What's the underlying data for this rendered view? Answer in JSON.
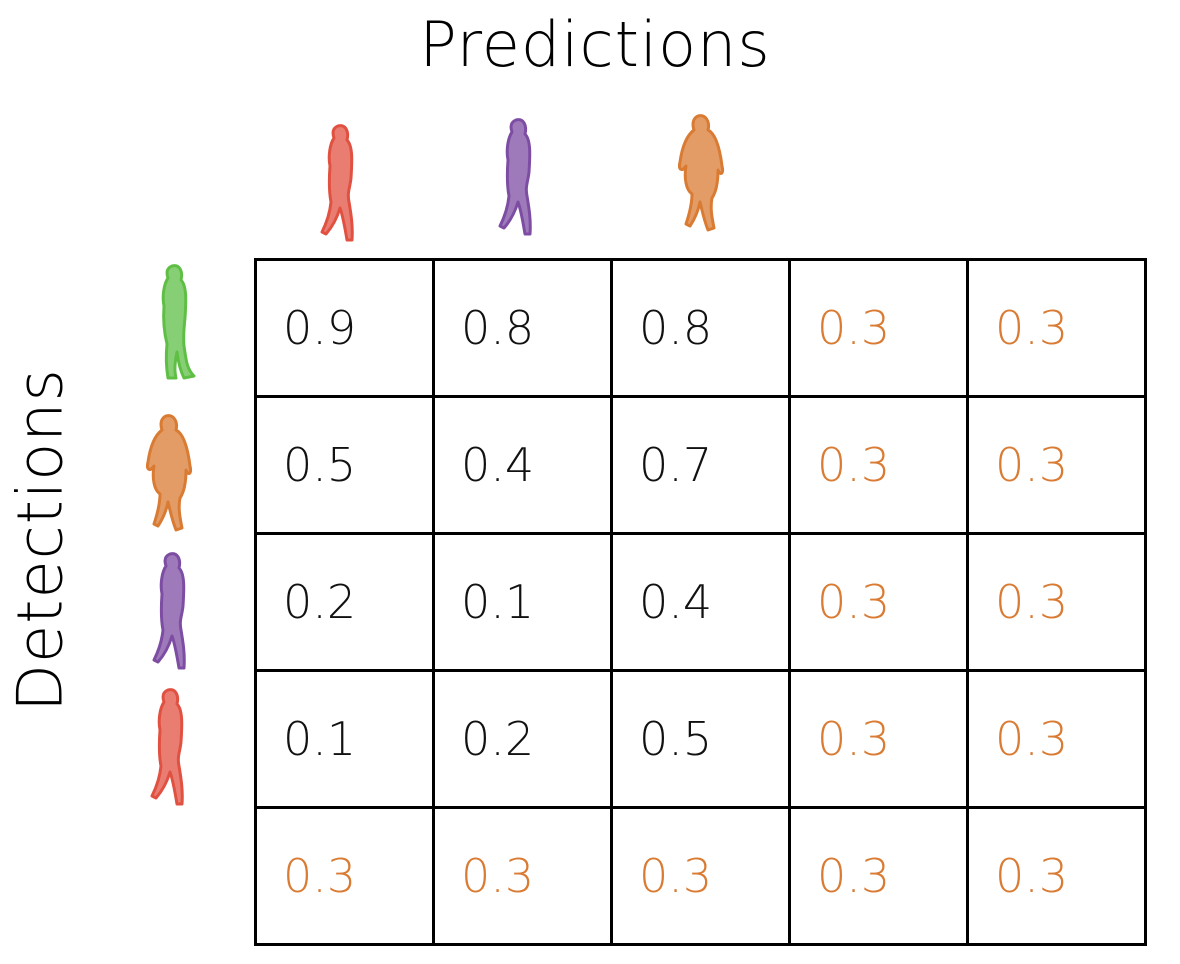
{
  "titles": {
    "top": "Predictions",
    "left": "Detections"
  },
  "colors": {
    "black_value": "#111111",
    "orange_value": "#d97b33",
    "figure_red": "#e15141",
    "figure_purple": "#7d4da3",
    "figure_orange": "#d97b33",
    "figure_green": "#5fbf45"
  },
  "predictions": [
    {
      "icon": "red-person-icon"
    },
    {
      "icon": "purple-person-icon"
    },
    {
      "icon": "orange-person-icon"
    }
  ],
  "detections": [
    {
      "icon": "green-person-icon"
    },
    {
      "icon": "orange-person-icon"
    },
    {
      "icon": "purple-person-icon"
    },
    {
      "icon": "red-person-icon"
    }
  ],
  "matrix": [
    [
      "0.9",
      "0.8",
      "0.8",
      "0.3",
      "0.3"
    ],
    [
      "0.5",
      "0.4",
      "0.7",
      "0.3",
      "0.3"
    ],
    [
      "0.2",
      "0.1",
      "0.4",
      "0.3",
      "0.3"
    ],
    [
      "0.1",
      "0.2",
      "0.5",
      "0.3",
      "0.3"
    ],
    [
      "0.3",
      "0.3",
      "0.3",
      "0.3",
      "0.3"
    ]
  ],
  "cell_styles": [
    [
      "black",
      "black",
      "black",
      "orange",
      "orange"
    ],
    [
      "black",
      "black",
      "black",
      "orange",
      "orange"
    ],
    [
      "black",
      "black",
      "black",
      "orange",
      "orange"
    ],
    [
      "black",
      "black",
      "black",
      "orange",
      "orange"
    ],
    [
      "orange",
      "orange",
      "orange",
      "orange",
      "orange"
    ]
  ]
}
